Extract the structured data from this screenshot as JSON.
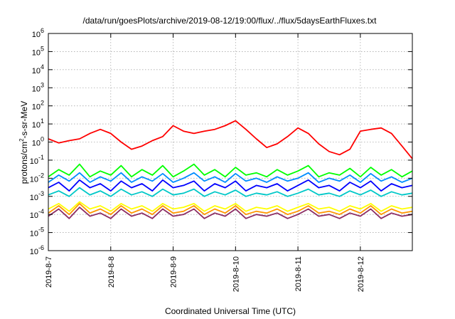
{
  "chart_data": {
    "type": "line",
    "title": "/data/run/goesPlots/archive/2019-08-12/19:00/flux/../flux/5daysEarthFluxes.txt",
    "xlabel": "Coordinated Universal Time (UTC)",
    "ylabel_main": "protons/cm",
    "ylabel_sup": "2",
    "ylabel_rest": "-s-sr-MeV",
    "y_scale": "log",
    "ylim": [
      1e-06,
      1000000.0
    ],
    "xlim": [
      "2019-8-7",
      "2019-8-12 20:00"
    ],
    "x_ticks": [
      "2019-8-7",
      "2019-8-8",
      "2019-8-9",
      "2019-8-10",
      "2019-8-11",
      "2019-8-12"
    ],
    "y_ticks": [
      {
        "base": "10",
        "exp": "-6"
      },
      {
        "base": "10",
        "exp": "-5"
      },
      {
        "base": "10",
        "exp": "-4"
      },
      {
        "base": "10",
        "exp": "-3"
      },
      {
        "base": "10",
        "exp": "-2"
      },
      {
        "base": "10",
        "exp": "-1"
      },
      {
        "base": "10",
        "exp": "0"
      },
      {
        "base": "10",
        "exp": "1"
      },
      {
        "base": "10",
        "exp": "2"
      },
      {
        "base": "10",
        "exp": "3"
      },
      {
        "base": "10",
        "exp": "4"
      },
      {
        "base": "10",
        "exp": "5"
      },
      {
        "base": "10",
        "exp": "6"
      }
    ],
    "grid": true,
    "series": [
      {
        "color": "#ff0000",
        "x": [
          "2019-8-7 00:00",
          "2019-8-7 04:00",
          "2019-8-7 08:00",
          "2019-8-7 12:00",
          "2019-8-7 16:00",
          "2019-8-7 20:00",
          "2019-8-8 00:00",
          "2019-8-8 04:00",
          "2019-8-8 08:00",
          "2019-8-8 12:00",
          "2019-8-8 16:00",
          "2019-8-8 20:00",
          "2019-8-9 00:00",
          "2019-8-9 04:00",
          "2019-8-9 08:00",
          "2019-8-9 12:00",
          "2019-8-9 16:00",
          "2019-8-9 20:00",
          "2019-8-10 00:00",
          "2019-8-10 04:00",
          "2019-8-10 08:00",
          "2019-8-10 12:00",
          "2019-8-10 16:00",
          "2019-8-10 20:00",
          "2019-8-11 00:00",
          "2019-8-11 04:00",
          "2019-8-11 08:00",
          "2019-8-11 12:00",
          "2019-8-11 16:00",
          "2019-8-11 20:00",
          "2019-8-12 00:00",
          "2019-8-12 04:00",
          "2019-8-12 08:00",
          "2019-8-12 12:00",
          "2019-8-12 16:00",
          "2019-8-12 20:00"
        ],
        "y": [
          1.5,
          0.9,
          1.2,
          1.5,
          3,
          5,
          3,
          1,
          0.4,
          0.6,
          1.2,
          2,
          8,
          4,
          3,
          4,
          5,
          8,
          15,
          5,
          1.5,
          0.5,
          0.8,
          2,
          6,
          3,
          0.8,
          0.3,
          0.2,
          0.4,
          4,
          5,
          6,
          3,
          0.6,
          0.12
        ]
      },
      {
        "color": "#00ff00",
        "x": [
          "2019-8-7 00:00",
          "2019-8-7 04:00",
          "2019-8-7 08:00",
          "2019-8-7 12:00",
          "2019-8-7 16:00",
          "2019-8-7 20:00",
          "2019-8-8 00:00",
          "2019-8-8 04:00",
          "2019-8-8 08:00",
          "2019-8-8 12:00",
          "2019-8-8 16:00",
          "2019-8-8 20:00",
          "2019-8-9 00:00",
          "2019-8-9 04:00",
          "2019-8-9 08:00",
          "2019-8-9 12:00",
          "2019-8-9 16:00",
          "2019-8-9 20:00",
          "2019-8-10 00:00",
          "2019-8-10 04:00",
          "2019-8-10 08:00",
          "2019-8-10 12:00",
          "2019-8-10 16:00",
          "2019-8-10 20:00",
          "2019-8-11 00:00",
          "2019-8-11 04:00",
          "2019-8-11 08:00",
          "2019-8-11 12:00",
          "2019-8-11 16:00",
          "2019-8-11 20:00",
          "2019-8-12 00:00",
          "2019-8-12 04:00",
          "2019-8-12 08:00",
          "2019-8-12 12:00",
          "2019-8-12 16:00",
          "2019-8-12 20:00"
        ],
        "y": [
          0.012,
          0.03,
          0.015,
          0.06,
          0.012,
          0.025,
          0.015,
          0.05,
          0.012,
          0.03,
          0.015,
          0.05,
          0.012,
          0.025,
          0.06,
          0.015,
          0.03,
          0.012,
          0.04,
          0.015,
          0.02,
          0.012,
          0.03,
          0.015,
          0.025,
          0.05,
          0.012,
          0.02,
          0.015,
          0.035,
          0.012,
          0.04,
          0.015,
          0.03,
          0.012,
          0.025
        ]
      },
      {
        "color": "#008cff",
        "x": [
          "2019-8-7 00:00",
          "2019-8-7 04:00",
          "2019-8-7 08:00",
          "2019-8-7 12:00",
          "2019-8-7 16:00",
          "2019-8-7 20:00",
          "2019-8-8 00:00",
          "2019-8-8 04:00",
          "2019-8-8 08:00",
          "2019-8-8 12:00",
          "2019-8-8 16:00",
          "2019-8-8 20:00",
          "2019-8-9 00:00",
          "2019-8-9 04:00",
          "2019-8-9 08:00",
          "2019-8-9 12:00",
          "2019-8-9 16:00",
          "2019-8-9 20:00",
          "2019-8-10 00:00",
          "2019-8-10 04:00",
          "2019-8-10 08:00",
          "2019-8-10 12:00",
          "2019-8-10 16:00",
          "2019-8-10 20:00",
          "2019-8-11 00:00",
          "2019-8-11 04:00",
          "2019-8-11 08:00",
          "2019-8-11 12:00",
          "2019-8-11 16:00",
          "2019-8-11 20:00",
          "2019-8-12 00:00",
          "2019-8-12 04:00",
          "2019-8-12 08:00",
          "2019-8-12 12:00",
          "2019-8-12 16:00",
          "2019-8-12 20:00"
        ],
        "y": [
          0.006,
          0.015,
          0.007,
          0.02,
          0.006,
          0.012,
          0.007,
          0.02,
          0.006,
          0.012,
          0.007,
          0.018,
          0.006,
          0.01,
          0.02,
          0.007,
          0.012,
          0.006,
          0.018,
          0.007,
          0.01,
          0.006,
          0.012,
          0.007,
          0.01,
          0.02,
          0.006,
          0.01,
          0.007,
          0.015,
          0.006,
          0.018,
          0.007,
          0.012,
          0.006,
          0.01
        ]
      },
      {
        "color": "#0000ff",
        "x": [
          "2019-8-7 00:00",
          "2019-8-7 04:00",
          "2019-8-7 08:00",
          "2019-8-7 12:00",
          "2019-8-7 16:00",
          "2019-8-7 20:00",
          "2019-8-8 00:00",
          "2019-8-8 04:00",
          "2019-8-8 08:00",
          "2019-8-8 12:00",
          "2019-8-8 16:00",
          "2019-8-8 20:00",
          "2019-8-9 00:00",
          "2019-8-9 04:00",
          "2019-8-9 08:00",
          "2019-8-9 12:00",
          "2019-8-9 16:00",
          "2019-8-9 20:00",
          "2019-8-10 00:00",
          "2019-8-10 04:00",
          "2019-8-10 08:00",
          "2019-8-10 12:00",
          "2019-8-10 16:00",
          "2019-8-10 20:00",
          "2019-8-11 00:00",
          "2019-8-11 04:00",
          "2019-8-11 08:00",
          "2019-8-11 12:00",
          "2019-8-11 16:00",
          "2019-8-11 20:00",
          "2019-8-12 00:00",
          "2019-8-12 04:00",
          "2019-8-12 08:00",
          "2019-8-12 12:00",
          "2019-8-12 16:00",
          "2019-8-12 20:00"
        ],
        "y": [
          0.003,
          0.006,
          0.002,
          0.008,
          0.003,
          0.005,
          0.002,
          0.007,
          0.003,
          0.005,
          0.002,
          0.008,
          0.003,
          0.004,
          0.007,
          0.002,
          0.005,
          0.003,
          0.007,
          0.002,
          0.004,
          0.003,
          0.005,
          0.002,
          0.004,
          0.008,
          0.003,
          0.004,
          0.002,
          0.006,
          0.003,
          0.007,
          0.002,
          0.005,
          0.003,
          0.004
        ]
      },
      {
        "color": "#00c8c8",
        "x": [
          "2019-8-7 00:00",
          "2019-8-7 04:00",
          "2019-8-7 08:00",
          "2019-8-7 12:00",
          "2019-8-7 16:00",
          "2019-8-7 20:00",
          "2019-8-8 00:00",
          "2019-8-8 04:00",
          "2019-8-8 08:00",
          "2019-8-8 12:00",
          "2019-8-8 16:00",
          "2019-8-8 20:00",
          "2019-8-9 00:00",
          "2019-8-9 04:00",
          "2019-8-9 08:00",
          "2019-8-9 12:00",
          "2019-8-9 16:00",
          "2019-8-9 20:00",
          "2019-8-10 00:00",
          "2019-8-10 04:00",
          "2019-8-10 08:00",
          "2019-8-10 12:00",
          "2019-8-10 16:00",
          "2019-8-10 20:00",
          "2019-8-11 00:00",
          "2019-8-11 04:00",
          "2019-8-11 08:00",
          "2019-8-11 12:00",
          "2019-8-11 16:00",
          "2019-8-11 20:00",
          "2019-8-12 00:00",
          "2019-8-12 04:00",
          "2019-8-12 08:00",
          "2019-8-12 12:00",
          "2019-8-12 16:00",
          "2019-8-12 20:00"
        ],
        "y": [
          0.0012,
          0.002,
          0.001,
          0.003,
          0.0012,
          0.002,
          0.001,
          0.0025,
          0.0012,
          0.0018,
          0.001,
          0.0025,
          0.0012,
          0.0015,
          0.0025,
          0.001,
          0.0018,
          0.0012,
          0.0022,
          0.001,
          0.0015,
          0.0012,
          0.0018,
          0.001,
          0.0015,
          0.0025,
          0.0012,
          0.0015,
          0.001,
          0.002,
          0.0012,
          0.0022,
          0.001,
          0.0018,
          0.0012,
          0.0015
        ]
      },
      {
        "color": "#ffff00",
        "x": [
          "2019-8-7 00:00",
          "2019-8-7 04:00",
          "2019-8-7 08:00",
          "2019-8-7 12:00",
          "2019-8-7 16:00",
          "2019-8-7 20:00",
          "2019-8-8 00:00",
          "2019-8-8 04:00",
          "2019-8-8 08:00",
          "2019-8-8 12:00",
          "2019-8-8 16:00",
          "2019-8-8 20:00",
          "2019-8-9 00:00",
          "2019-8-9 04:00",
          "2019-8-9 08:00",
          "2019-8-9 12:00",
          "2019-8-9 16:00",
          "2019-8-9 20:00",
          "2019-8-10 00:00",
          "2019-8-10 04:00",
          "2019-8-10 08:00",
          "2019-8-10 12:00",
          "2019-8-10 16:00",
          "2019-8-10 20:00",
          "2019-8-11 00:00",
          "2019-8-11 04:00",
          "2019-8-11 08:00",
          "2019-8-11 12:00",
          "2019-8-11 16:00",
          "2019-8-11 20:00",
          "2019-8-12 00:00",
          "2019-8-12 04:00",
          "2019-8-12 08:00",
          "2019-8-12 12:00",
          "2019-8-12 16:00",
          "2019-8-12 20:00"
        ],
        "y": [
          0.0002,
          0.0004,
          0.00015,
          0.0005,
          0.0002,
          0.0003,
          0.00015,
          0.0004,
          0.0002,
          0.0003,
          0.00015,
          0.0004,
          0.0002,
          0.00025,
          0.0004,
          0.00015,
          0.0003,
          0.0002,
          0.0004,
          0.00015,
          0.00025,
          0.0002,
          0.0003,
          0.00015,
          0.00025,
          0.0004,
          0.0002,
          0.00025,
          0.00015,
          0.0003,
          0.0002,
          0.0004,
          0.00015,
          0.0003,
          0.0002,
          0.00025
        ]
      },
      {
        "color": "#ff9600",
        "x": [
          "2019-8-7 00:00",
          "2019-8-7 04:00",
          "2019-8-7 08:00",
          "2019-8-7 12:00",
          "2019-8-7 16:00",
          "2019-8-7 20:00",
          "2019-8-8 00:00",
          "2019-8-8 04:00",
          "2019-8-8 08:00",
          "2019-8-8 12:00",
          "2019-8-8 16:00",
          "2019-8-8 20:00",
          "2019-8-9 00:00",
          "2019-8-9 04:00",
          "2019-8-9 08:00",
          "2019-8-9 12:00",
          "2019-8-9 16:00",
          "2019-8-9 20:00",
          "2019-8-10 00:00",
          "2019-8-10 04:00",
          "2019-8-10 08:00",
          "2019-8-10 12:00",
          "2019-8-10 16:00",
          "2019-8-10 20:00",
          "2019-8-11 00:00",
          "2019-8-11 04:00",
          "2019-8-11 08:00",
          "2019-8-11 12:00",
          "2019-8-11 16:00",
          "2019-8-11 20:00",
          "2019-8-12 00:00",
          "2019-8-12 04:00",
          "2019-8-12 08:00",
          "2019-8-12 12:00",
          "2019-8-12 16:00",
          "2019-8-12 20:00"
        ],
        "y": [
          0.00012,
          0.0003,
          0.0001,
          0.0004,
          0.00012,
          0.0002,
          0.0001,
          0.0003,
          0.00012,
          0.0002,
          0.0001,
          0.0003,
          0.00012,
          0.00015,
          0.0003,
          0.0001,
          0.0002,
          0.00012,
          0.0003,
          0.0001,
          0.00015,
          0.00012,
          0.0002,
          0.0001,
          0.00015,
          0.0003,
          0.00012,
          0.00015,
          0.0001,
          0.0002,
          0.00012,
          0.0003,
          0.0001,
          0.0002,
          0.00012,
          0.00015
        ]
      },
      {
        "color": "#8c2d64",
        "x": [
          "2019-8-7 00:00",
          "2019-8-7 04:00",
          "2019-8-7 08:00",
          "2019-8-7 12:00",
          "2019-8-7 16:00",
          "2019-8-7 20:00",
          "2019-8-8 00:00",
          "2019-8-8 04:00",
          "2019-8-8 08:00",
          "2019-8-8 12:00",
          "2019-8-8 16:00",
          "2019-8-8 20:00",
          "2019-8-9 00:00",
          "2019-8-9 04:00",
          "2019-8-9 08:00",
          "2019-8-9 12:00",
          "2019-8-9 16:00",
          "2019-8-9 20:00",
          "2019-8-10 00:00",
          "2019-8-10 04:00",
          "2019-8-10 08:00",
          "2019-8-10 12:00",
          "2019-8-10 16:00",
          "2019-8-10 20:00",
          "2019-8-11 00:00",
          "2019-8-11 04:00",
          "2019-8-11 08:00",
          "2019-8-11 12:00",
          "2019-8-11 16:00",
          "2019-8-11 20:00",
          "2019-8-12 00:00",
          "2019-8-12 04:00",
          "2019-8-12 08:00",
          "2019-8-12 12:00",
          "2019-8-12 16:00",
          "2019-8-12 20:00"
        ],
        "y": [
          8e-05,
          0.0002,
          6e-05,
          0.00025,
          8e-05,
          0.00012,
          6e-05,
          0.0002,
          8e-05,
          0.00012,
          6e-05,
          0.0002,
          8e-05,
          0.0001,
          0.0002,
          6e-05,
          0.00012,
          8e-05,
          0.0002,
          6e-05,
          0.0001,
          8e-05,
          0.00012,
          6e-05,
          0.0001,
          0.0002,
          8e-05,
          0.0001,
          6e-05,
          0.00012,
          8e-05,
          0.0002,
          6e-05,
          0.00012,
          8e-05,
          0.0001
        ]
      }
    ]
  }
}
